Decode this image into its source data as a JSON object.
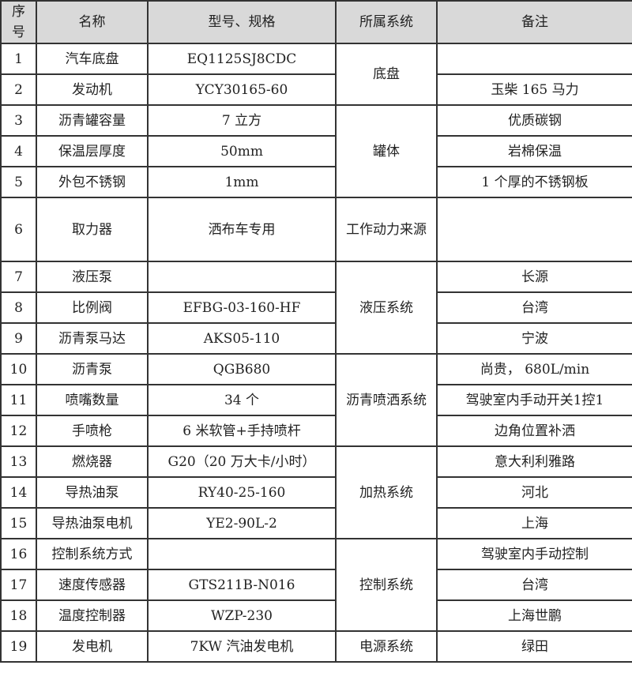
{
  "header": {
    "no": "序号",
    "name": "名称",
    "model": "型号、规格",
    "system": "所属系统",
    "remark": "备注"
  },
  "header_background": "#d9d9d9",
  "groups": [
    {
      "system": "底盘",
      "rows": [
        {
          "no": "1",
          "name": "汽车底盘",
          "model": "EQ1125SJ8CDC",
          "remark": ""
        },
        {
          "no": "2",
          "name": "发动机",
          "model": "YCY30165-60",
          "remark": "玉柴 165 马力"
        }
      ]
    },
    {
      "system": "罐体",
      "rows": [
        {
          "no": "3",
          "name": "沥青罐容量",
          "model": "7 立方",
          "remark": "优质碳钢"
        },
        {
          "no": "4",
          "name": "保温层厚度",
          "model": "50mm",
          "remark": "岩棉保温"
        },
        {
          "no": "5",
          "name": "外包不锈钢",
          "model": "1mm",
          "remark": "1 个厚的不锈钢板"
        }
      ]
    },
    {
      "system": "工作动力来源",
      "tall": true,
      "rows": [
        {
          "no": "6",
          "name": "取力器",
          "model": "洒布车专用",
          "remark": ""
        }
      ]
    },
    {
      "system": "液压系统",
      "rows": [
        {
          "no": "7",
          "name": "液压泵",
          "model": "",
          "remark": "长源"
        },
        {
          "no": "8",
          "name": "比例阀",
          "model": "EFBG-03-160-HF",
          "remark": "台湾"
        },
        {
          "no": "9",
          "name": "沥青泵马达",
          "model": "AKS05-110",
          "remark": "宁波"
        }
      ]
    },
    {
      "system": "沥青喷洒系统",
      "rows": [
        {
          "no": "10",
          "name": "沥青泵",
          "model": "QGB680",
          "remark": "尚贵， 680L/min"
        },
        {
          "no": "11",
          "name": "喷嘴数量",
          "model": "34 个",
          "remark": "驾驶室内手动开关1控1"
        },
        {
          "no": "12",
          "name": "手喷枪",
          "model": "6 米软管+手持喷杆",
          "remark": "边角位置补洒"
        }
      ]
    },
    {
      "system": "加热系统",
      "rows": [
        {
          "no": "13",
          "name": "燃烧器",
          "model": "G20（20 万大卡/小时）",
          "remark": "意大利利雅路"
        },
        {
          "no": "14",
          "name": "导热油泵",
          "model": "RY40-25-160",
          "remark": "河北"
        },
        {
          "no": "15",
          "name": "导热油泵电机",
          "model": "YE2-90L-2",
          "remark": "上海"
        }
      ]
    },
    {
      "system": "控制系统",
      "rows": [
        {
          "no": "16",
          "name": "控制系统方式",
          "model": "",
          "remark": "驾驶室内手动控制"
        },
        {
          "no": "17",
          "name": "速度传感器",
          "model": "GTS211B-N016",
          "remark": "台湾"
        },
        {
          "no": "18",
          "name": "温度控制器",
          "model": "WZP-230",
          "remark": "上海世鹏"
        }
      ]
    },
    {
      "system": "电源系统",
      "rows": [
        {
          "no": "19",
          "name": "发电机",
          "model": "7KW 汽油发电机",
          "remark": "绿田"
        }
      ]
    }
  ]
}
